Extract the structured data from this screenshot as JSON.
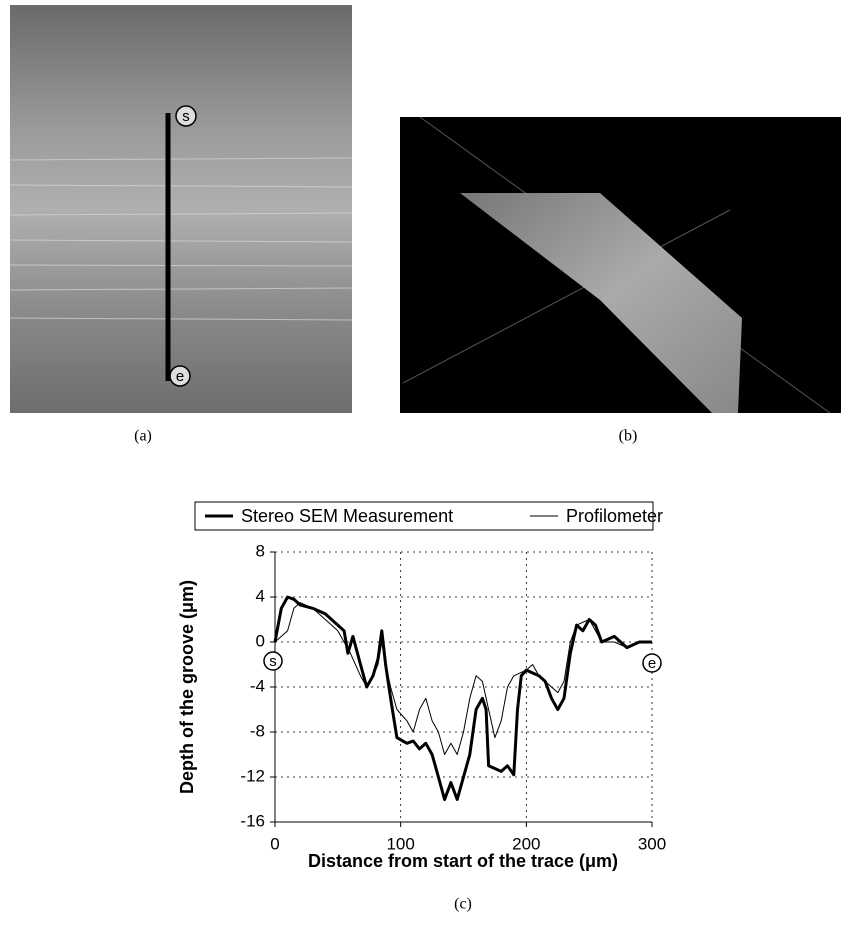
{
  "panel_labels": [
    "(a)",
    "(b)",
    "(c)"
  ],
  "trace_markers": {
    "start": "s",
    "end": "e"
  },
  "chart_data": {
    "type": "line",
    "xlabel": "Distance from start of the trace (μm)",
    "ylabel": "Depth of the groove (μm)",
    "xlim": [
      0,
      300
    ],
    "ylim": [
      -16,
      8
    ],
    "xticks": [
      0,
      100,
      200,
      300
    ],
    "yticks": [
      -16,
      -12,
      -8,
      -4,
      0,
      4,
      8
    ],
    "grid": true,
    "legend": "top",
    "series": [
      {
        "name": "Stereo SEM Measurement",
        "color": "#000000",
        "width": 3,
        "x": [
          0,
          5,
          10,
          15,
          20,
          30,
          40,
          50,
          55,
          58,
          62,
          68,
          73,
          78,
          82,
          85,
          88,
          92,
          97,
          105,
          110,
          115,
          120,
          125,
          130,
          135,
          140,
          145,
          150,
          155,
          160,
          165,
          168,
          170,
          180,
          185,
          190,
          193,
          196,
          200,
          210,
          215,
          220,
          225,
          230,
          235,
          240,
          245,
          250,
          255,
          260,
          270,
          280,
          290,
          300
        ],
        "values": [
          0,
          3,
          4,
          3.8,
          3.3,
          3,
          2.5,
          1.5,
          1,
          -1,
          0.5,
          -2,
          -4,
          -3,
          -1.5,
          1,
          -2,
          -5,
          -8.5,
          -9,
          -8.8,
          -9.5,
          -9,
          -10,
          -12,
          -14,
          -12.5,
          -14,
          -12,
          -10,
          -6,
          -5,
          -6,
          -11,
          -11.5,
          -11,
          -11.8,
          -6,
          -3,
          -2.5,
          -3,
          -3.5,
          -5,
          -6,
          -5,
          -1,
          1.5,
          1,
          2,
          1.5,
          0,
          0.5,
          -0.5,
          0,
          0
        ]
      },
      {
        "name": "Profilometer",
        "color": "#000000",
        "width": 1,
        "x": [
          0,
          5,
          10,
          15,
          20,
          30,
          40,
          50,
          55,
          60,
          68,
          73,
          78,
          82,
          85,
          88,
          92,
          97,
          105,
          110,
          115,
          120,
          125,
          130,
          135,
          140,
          145,
          150,
          155,
          160,
          165,
          170,
          175,
          180,
          185,
          190,
          200,
          205,
          210,
          220,
          225,
          230,
          235,
          240,
          250,
          255,
          260,
          270,
          280,
          290,
          300
        ],
        "values": [
          0,
          0.5,
          1,
          3,
          3.5,
          3,
          2,
          1,
          0,
          -1,
          -3,
          -4,
          -3,
          -2,
          0,
          -2,
          -4,
          -6,
          -7,
          -8,
          -6,
          -5,
          -7,
          -8,
          -10,
          -9,
          -10,
          -8,
          -5,
          -3,
          -3.5,
          -6,
          -8.5,
          -7,
          -4,
          -3,
          -2.5,
          -2,
          -3,
          -4,
          -4.5,
          -3.5,
          0,
          1.5,
          2,
          1,
          0,
          0,
          -0.5,
          0,
          0
        ]
      }
    ]
  }
}
